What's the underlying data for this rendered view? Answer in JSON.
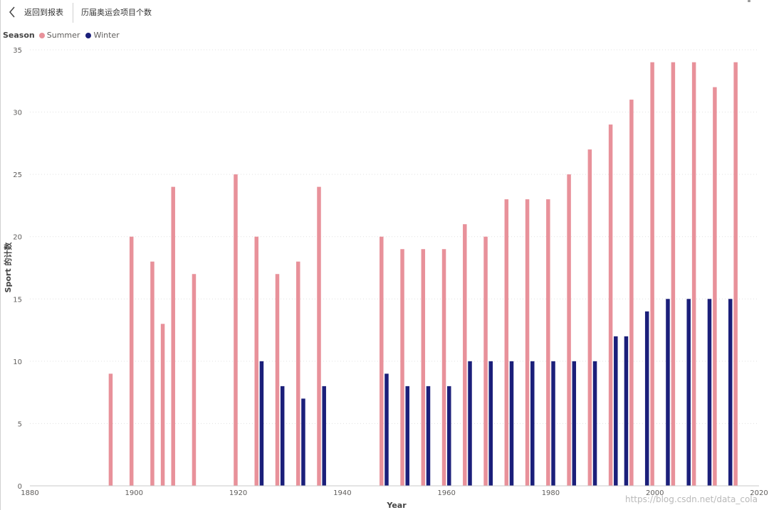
{
  "header": {
    "back_label": "返回到报表",
    "page_title": "历届奥运会项目个数"
  },
  "colors": {
    "summer": "#e8919a",
    "winter": "#1b1f7a",
    "grid": "#e1e1e1"
  },
  "watermark": "https://blog.csdn.net/data_cola",
  "chart_data": {
    "type": "bar",
    "title": "",
    "xlabel": "Year",
    "ylabel": "Sport 的计数",
    "xlim": [
      1880,
      2020
    ],
    "ylim": [
      0,
      35
    ],
    "x_ticks": [
      1880,
      1900,
      1920,
      1940,
      1960,
      1980,
      2000,
      2020
    ],
    "y_ticks": [
      0,
      5,
      10,
      15,
      20,
      25,
      30,
      35
    ],
    "legend": {
      "title": "Season",
      "position": "top-left"
    },
    "grid": true,
    "series": [
      {
        "name": "Summer",
        "x": [
          1896,
          1900,
          1904,
          1906,
          1908,
          1912,
          1920,
          1924,
          1928,
          1932,
          1936,
          1948,
          1952,
          1956,
          1960,
          1964,
          1968,
          1972,
          1976,
          1980,
          1984,
          1988,
          1992,
          1996,
          2000,
          2004,
          2008,
          2012,
          2016
        ],
        "values": [
          9,
          20,
          18,
          13,
          24,
          17,
          25,
          20,
          17,
          18,
          24,
          20,
          19,
          19,
          19,
          21,
          20,
          23,
          23,
          23,
          25,
          27,
          29,
          31,
          34,
          34,
          34,
          32,
          34
        ]
      },
      {
        "name": "Winter",
        "x": [
          1924,
          1928,
          1932,
          1936,
          1948,
          1952,
          1956,
          1960,
          1964,
          1968,
          1972,
          1976,
          1980,
          1984,
          1988,
          1992,
          1994,
          1998,
          2002,
          2006,
          2010,
          2014
        ],
        "values": [
          10,
          8,
          7,
          8,
          9,
          8,
          8,
          8,
          10,
          10,
          10,
          10,
          10,
          10,
          10,
          12,
          12,
          14,
          15,
          15,
          15,
          15
        ]
      }
    ]
  }
}
